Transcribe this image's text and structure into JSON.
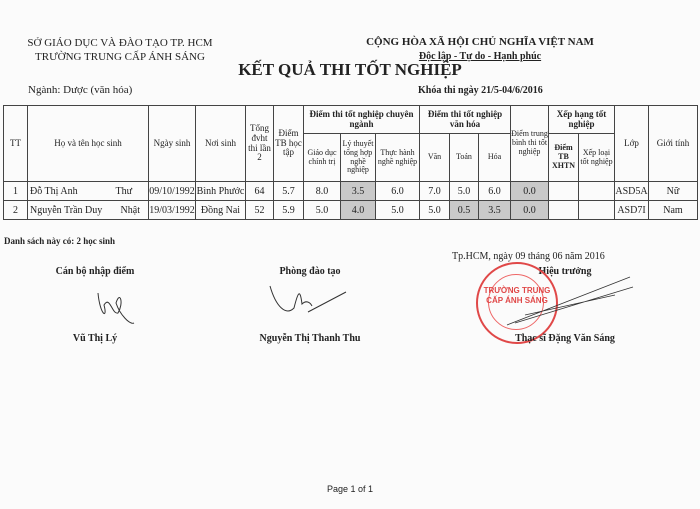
{
  "header": {
    "dept": "SỞ GIÁO DỤC VÀ ĐÀO TẠO TP. HCM",
    "school": "TRƯỜNG TRUNG CẤP ÁNH SÁNG",
    "republic": "CỘNG HÒA XÃ HỘI CHỦ NGHĨA VIỆT NAM",
    "motto": "Độc lập - Tự do - Hạnh phúc",
    "title": "KẾT QUẢ THI TỐT NGHIỆP",
    "major": "Ngành: Dược (văn hóa)",
    "exam_period": "Khóa thi ngày 21/5-04/6/2016"
  },
  "table": {
    "headers": {
      "tt": "TT",
      "name": "Họ và tên học sinh",
      "dob": "Ngày sinh",
      "birthplace": "Nơi sinh",
      "credits": "Tổng đvht thi lần 2",
      "gpa": "Điểm TB học tập",
      "major_group": "Điểm thi tốt nghiệp chuyên ngành",
      "politics": "Giáo dục chính trị",
      "theory": "Lý thuyết tổng hợp nghề nghiệp",
      "practice": "Thực hành nghề nghiệp",
      "culture_group": "Điểm thi tốt nghiệp văn hóa",
      "literature": "Văn",
      "math": "Toán",
      "chemistry": "Hóa",
      "avg": "Điểm trung bình thi tốt nghiệp",
      "rank_group": "Xếp hạng tốt nghiệp",
      "rank_score": "Điểm TB XHTN",
      "rank_class": "Xếp loại tốt nghiệp",
      "class": "Lớp",
      "gender": "Giới tính"
    },
    "rows": [
      {
        "tt": "1",
        "first": "Đỗ Thị Anh",
        "last": "Thư",
        "dob": "09/10/1992",
        "birthplace": "Bình Phước",
        "credits": "64",
        "gpa": "5.7",
        "politics": "8.0",
        "theory": "3.5",
        "practice": "6.0",
        "literature": "7.0",
        "math": "5.0",
        "chemistry": "6.0",
        "avg": "0.0",
        "rank_score": "",
        "rank_class": "",
        "class": "ASD5A",
        "gender": "Nữ"
      },
      {
        "tt": "2",
        "first": "Nguyễn Trần Duy",
        "last": "Nhật",
        "dob": "19/03/1992",
        "birthplace": "Đồng Nai",
        "credits": "52",
        "gpa": "5.9",
        "politics": "5.0",
        "theory": "4.0",
        "practice": "5.0",
        "literature": "5.0",
        "math": "0.5",
        "chemistry": "3.5",
        "avg": "0.0",
        "rank_score": "",
        "rank_class": "",
        "class": "ASD7I",
        "gender": "Nam"
      }
    ]
  },
  "summary": "Danh sách này có: 2 học sinh",
  "signatures": {
    "place_date": "Tp.HCM, ngày 09 tháng 06 năm 2016",
    "entry_role": "Cán bộ nhập điểm",
    "entry_name": "Vũ Thị Lý",
    "training_role": "Phòng đào tạo",
    "training_name": "Nguyễn Thị Thanh Thu",
    "principal_role": "Hiệu trưởng",
    "principal_name": "Thạc sĩ Đặng Văn Sáng",
    "stamp_text": "TRƯỜNG TRUNG CẤP ÁNH SÁNG"
  },
  "footer": {
    "page": "Page 1 of 1"
  },
  "colors": {
    "highlight": "#c9c9c9",
    "stamp": "#e04848"
  }
}
